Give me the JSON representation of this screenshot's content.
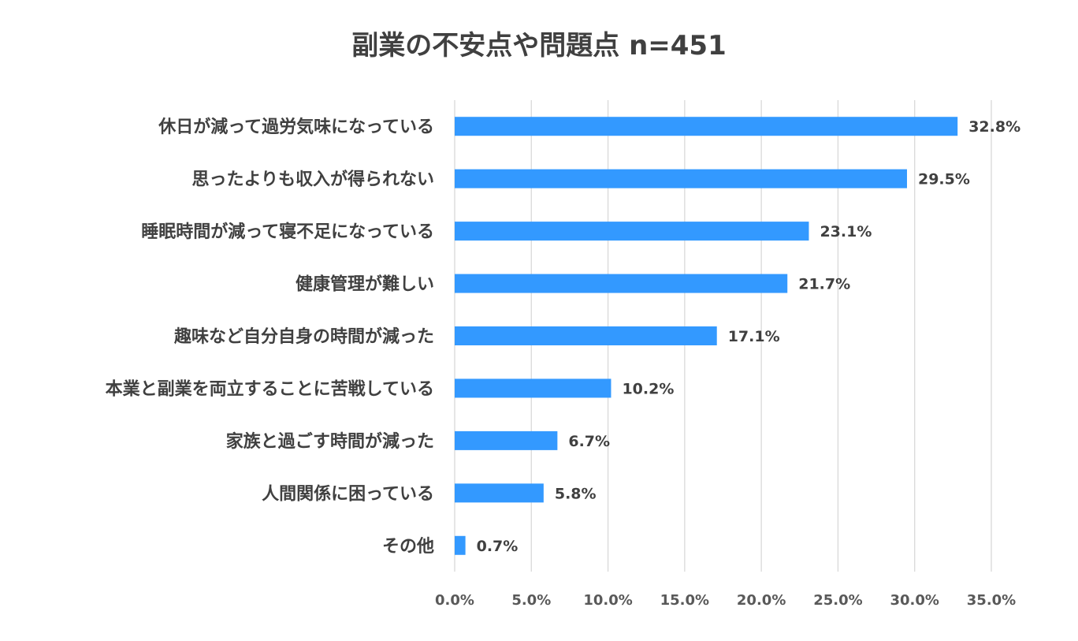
{
  "chart_data": {
    "type": "bar",
    "orientation": "horizontal",
    "title": "副業の不安点や問題点 n=451",
    "categories": [
      "休日が減って過労気味になっている",
      "思ったよりも収入が得られない",
      "睡眠時間が減って寝不足になっている",
      "健康管理が難しい",
      "趣味など自分自身の時間が減った",
      "本業と副業を両立することに苦戦している",
      "家族と過ごす時間が減った",
      "人間関係に困っている",
      "その他"
    ],
    "values": [
      32.8,
      29.5,
      23.1,
      21.7,
      17.1,
      10.2,
      6.7,
      5.8,
      0.7
    ],
    "value_labels": [
      "32.8%",
      "29.5%",
      "23.1%",
      "21.7%",
      "17.1%",
      "10.2%",
      "6.7%",
      "5.8%",
      "0.7%"
    ],
    "x_ticks": [
      0,
      5,
      10,
      15,
      20,
      25,
      30,
      35
    ],
    "x_tick_labels": [
      "0.0%",
      "5.0%",
      "10.0%",
      "15.0%",
      "20.0%",
      "25.0%",
      "30.0%",
      "35.0%"
    ],
    "xlim": [
      0,
      35
    ],
    "xlabel": "",
    "ylabel": "",
    "grid": true,
    "legend": "none",
    "colors": {
      "bar": "#3399FF",
      "grid": "#D9D9D9",
      "text": "#404040"
    }
  }
}
